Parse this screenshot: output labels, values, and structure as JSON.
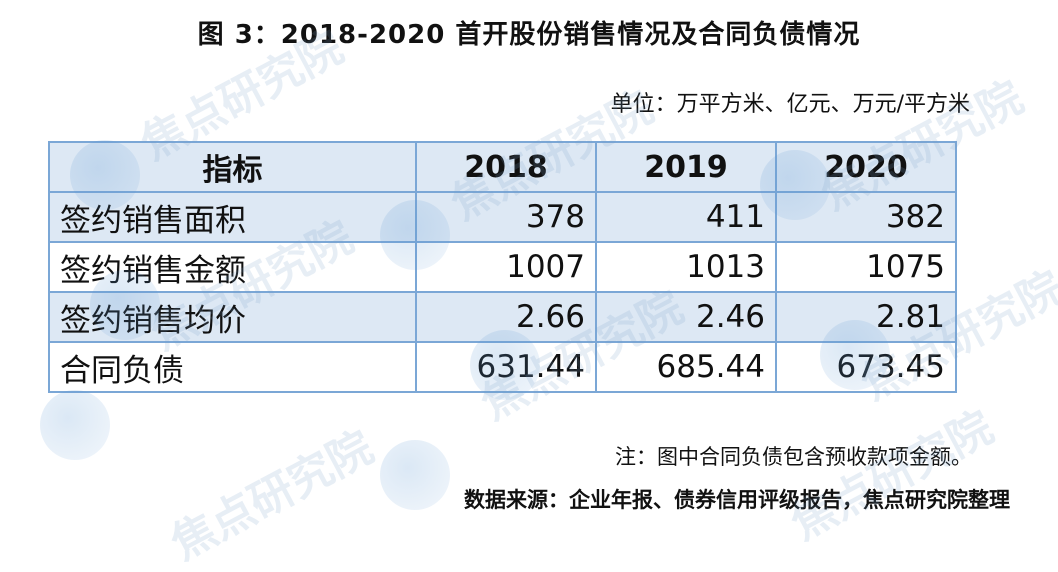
{
  "title": "图 3：2018-2020 首开股份销售情况及合同负债情况",
  "unit": "单位：万平方米、亿元、万元/平方米",
  "table": {
    "headers": [
      "指标",
      "2018",
      "2019",
      "2020"
    ],
    "rows": [
      {
        "label": "签约销售面积",
        "values": [
          "378",
          "411",
          "382"
        ]
      },
      {
        "label": "签约销售金额",
        "values": [
          "1007",
          "1013",
          "1075"
        ]
      },
      {
        "label": "签约销售均价",
        "values": [
          "2.66",
          "2.46",
          "2.81"
        ]
      },
      {
        "label": "合同负债",
        "values": [
          "631.44",
          "685.44",
          "673.45"
        ]
      }
    ]
  },
  "note": "注：图中合同负债包含预收款项金额。",
  "source": "数据来源：企业年报、债券信用评级报告，焦点研究院整理",
  "watermark": "焦点研究院",
  "colors": {
    "table_border": "#7ba7d6",
    "shaded_row": "#dde8f4"
  }
}
